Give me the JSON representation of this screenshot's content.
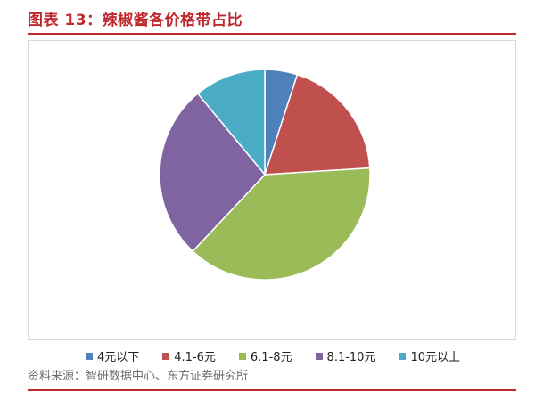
{
  "figure": {
    "title": "图表 13：辣椒酱各价格带占比",
    "source": "资料来源：智研数据中心、东方证券研究所"
  },
  "colors": {
    "accent": "#c0282e"
  },
  "chart_data": {
    "type": "pie",
    "categories": [
      "4元以下",
      "4.1-6元",
      "6.1-8元",
      "8.1-10元",
      "10元以上"
    ],
    "values": [
      5,
      19,
      38,
      27,
      11
    ],
    "colors": [
      "#4f81bd",
      "#c0504d",
      "#9bbb59",
      "#8064a2",
      "#4bacc6"
    ],
    "start_angle_deg": 0,
    "direction": "clockwise",
    "legend_position": "bottom",
    "title": "",
    "data_labels": false
  }
}
